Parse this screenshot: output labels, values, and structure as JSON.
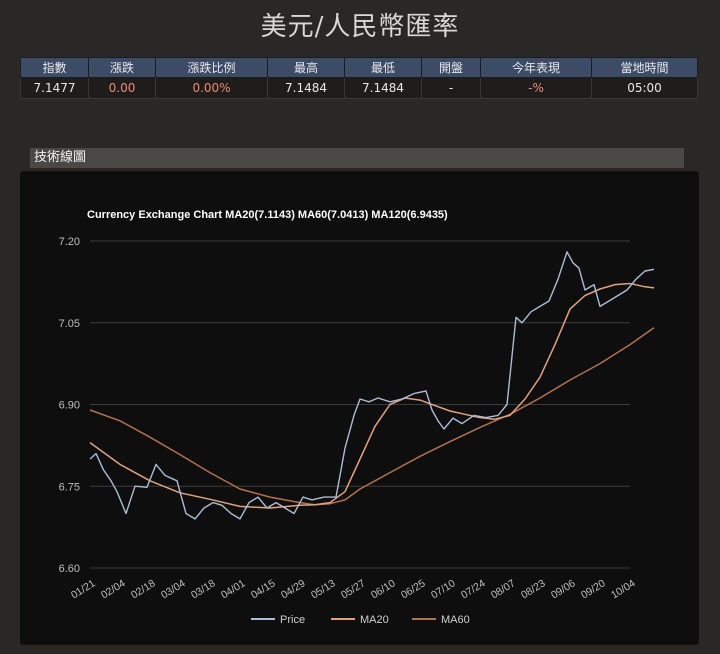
{
  "page": {
    "title": "美元/人民幣匯率"
  },
  "quote": {
    "headers": [
      "指數",
      "漲跌",
      "漲跌比例",
      "最高",
      "最低",
      "開盤",
      "今年表現",
      "當地時間"
    ],
    "values": [
      "7.1477",
      "0.00",
      "0.00%",
      "7.1484",
      "7.1484",
      "-",
      "-%",
      "05:00"
    ]
  },
  "section": {
    "title": "技術線圖"
  },
  "chart_data": {
    "type": "line",
    "title": "Currency Exchange Chart MA20(7.1143) MA60(7.0413) MA120(6.9435)",
    "x_ticks": [
      "01/21",
      "02/04",
      "02/18",
      "03/04",
      "03/18",
      "04/01",
      "04/15",
      "04/29",
      "05/13",
      "05/27",
      "06/10",
      "06/25",
      "07/10",
      "07/24",
      "08/07",
      "08/23",
      "09/06",
      "09/20",
      "10/04"
    ],
    "ylim": [
      6.6,
      7.2
    ],
    "yticks": [
      "6.60",
      "6.75",
      "6.90",
      "7.05",
      "7.20"
    ],
    "grid": true,
    "legend": "bottom",
    "colors": {
      "Price": "#a9bcd8",
      "MA20": "#e3a279",
      "MA60": "#b5714a"
    },
    "series": [
      {
        "name": "Price",
        "values": [
          [
            0,
            6.8
          ],
          [
            0.2,
            6.81
          ],
          [
            0.45,
            6.78
          ],
          [
            0.7,
            6.76
          ],
          [
            0.9,
            6.74
          ],
          [
            1.2,
            6.7
          ],
          [
            1.5,
            6.75
          ],
          [
            1.9,
            6.748
          ],
          [
            2.2,
            6.79
          ],
          [
            2.5,
            6.77
          ],
          [
            2.9,
            6.76
          ],
          [
            3.2,
            6.7
          ],
          [
            3.5,
            6.69
          ],
          [
            3.8,
            6.71
          ],
          [
            4.1,
            6.72
          ],
          [
            4.4,
            6.715
          ],
          [
            4.7,
            6.7
          ],
          [
            5.0,
            6.69
          ],
          [
            5.3,
            6.72
          ],
          [
            5.6,
            6.73
          ],
          [
            5.9,
            6.71
          ],
          [
            6.2,
            6.72
          ],
          [
            6.5,
            6.71
          ],
          [
            6.8,
            6.7
          ],
          [
            7.1,
            6.73
          ],
          [
            7.4,
            6.725
          ],
          [
            7.8,
            6.73
          ],
          [
            8.2,
            6.73
          ],
          [
            8.5,
            6.82
          ],
          [
            8.8,
            6.88
          ],
          [
            9.0,
            6.91
          ],
          [
            9.3,
            6.905
          ],
          [
            9.6,
            6.912
          ],
          [
            10.0,
            6.905
          ],
          [
            10.4,
            6.91
          ],
          [
            10.8,
            6.92
          ],
          [
            11.2,
            6.925
          ],
          [
            11.4,
            6.89
          ],
          [
            11.6,
            6.87
          ],
          [
            11.8,
            6.855
          ],
          [
            12.1,
            6.875
          ],
          [
            12.4,
            6.865
          ],
          [
            12.8,
            6.88
          ],
          [
            13.2,
            6.876
          ],
          [
            13.6,
            6.88
          ],
          [
            13.9,
            6.9
          ],
          [
            14.05,
            6.98
          ],
          [
            14.2,
            7.06
          ],
          [
            14.4,
            7.05
          ],
          [
            14.7,
            7.07
          ],
          [
            15.0,
            7.08
          ],
          [
            15.3,
            7.09
          ],
          [
            15.6,
            7.13
          ],
          [
            15.9,
            7.18
          ],
          [
            16.1,
            7.16
          ],
          [
            16.3,
            7.15
          ],
          [
            16.5,
            7.11
          ],
          [
            16.8,
            7.12
          ],
          [
            17.0,
            7.08
          ],
          [
            17.3,
            7.09
          ],
          [
            17.6,
            7.1
          ],
          [
            17.9,
            7.11
          ],
          [
            18.2,
            7.13
          ],
          [
            18.5,
            7.145
          ],
          [
            18.8,
            7.148
          ]
        ]
      },
      {
        "name": "MA20",
        "values": [
          [
            0,
            6.83
          ],
          [
            1,
            6.79
          ],
          [
            2,
            6.76
          ],
          [
            3,
            6.738
          ],
          [
            4,
            6.726
          ],
          [
            5,
            6.713
          ],
          [
            6,
            6.71
          ],
          [
            7,
            6.715
          ],
          [
            7.5,
            6.716
          ],
          [
            8,
            6.72
          ],
          [
            8.5,
            6.74
          ],
          [
            9,
            6.8
          ],
          [
            9.5,
            6.86
          ],
          [
            10,
            6.9
          ],
          [
            10.5,
            6.912
          ],
          [
            11,
            6.908
          ],
          [
            11.5,
            6.898
          ],
          [
            12,
            6.888
          ],
          [
            12.5,
            6.882
          ],
          [
            13,
            6.876
          ],
          [
            13.5,
            6.873
          ],
          [
            14,
            6.88
          ],
          [
            14.5,
            6.91
          ],
          [
            15,
            6.95
          ],
          [
            15.5,
            7.01
          ],
          [
            16,
            7.075
          ],
          [
            16.5,
            7.1
          ],
          [
            17,
            7.112
          ],
          [
            17.5,
            7.12
          ],
          [
            18,
            7.122
          ],
          [
            18.5,
            7.116
          ],
          [
            18.8,
            7.114
          ]
        ]
      },
      {
        "name": "MA60",
        "values": [
          [
            0,
            6.89
          ],
          [
            1,
            6.87
          ],
          [
            2,
            6.84
          ],
          [
            3,
            6.808
          ],
          [
            4,
            6.775
          ],
          [
            5,
            6.745
          ],
          [
            6,
            6.73
          ],
          [
            7,
            6.72
          ],
          [
            7.5,
            6.716
          ],
          [
            8,
            6.718
          ],
          [
            8.5,
            6.725
          ],
          [
            9,
            6.745
          ],
          [
            10,
            6.775
          ],
          [
            11,
            6.805
          ],
          [
            12,
            6.832
          ],
          [
            13,
            6.858
          ],
          [
            13.5,
            6.87
          ],
          [
            14,
            6.882
          ],
          [
            15,
            6.912
          ],
          [
            16,
            6.945
          ],
          [
            17,
            6.975
          ],
          [
            18,
            7.01
          ],
          [
            18.8,
            7.041
          ]
        ]
      }
    ]
  }
}
